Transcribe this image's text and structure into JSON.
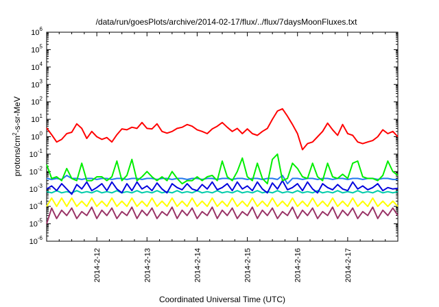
{
  "chart_data": {
    "type": "line",
    "title": "/data/run/goesPlots/archive/2014-02-17/flux/../flux/7daysMoonFluxes.txt",
    "xlabel": "Coordinated Universal Time (UTC)",
    "ylabel": {
      "base": "protons/cm",
      "sup": "2",
      "rest": "-s-sr-MeV"
    },
    "xlim": [
      0,
      7
    ],
    "ylim_log10": [
      -6,
      6
    ],
    "yscale": "log",
    "grid": false,
    "x_ticks": [
      {
        "x": 1,
        "label": "2014-2-12"
      },
      {
        "x": 2,
        "label": "2014-2-13"
      },
      {
        "x": 3,
        "label": "2014-2-14"
      },
      {
        "x": 4,
        "label": "2014-2-15"
      },
      {
        "x": 5,
        "label": "2014-2-16"
      },
      {
        "x": 6,
        "label": "2014-2-17"
      }
    ],
    "y_ticks": [
      {
        "exp": 6,
        "label": "10",
        "sup": "6"
      },
      {
        "exp": 5,
        "label": "10",
        "sup": "5"
      },
      {
        "exp": 4,
        "label": "10",
        "sup": "4"
      },
      {
        "exp": 3,
        "label": "10",
        "sup": "3"
      },
      {
        "exp": 2,
        "label": "10",
        "sup": "2"
      },
      {
        "exp": 1,
        "label": "10",
        "sup": "1"
      },
      {
        "exp": 0,
        "label": "10",
        "sup": "0"
      },
      {
        "exp": -1,
        "label": "10",
        "sup": "-1"
      },
      {
        "exp": -2,
        "label": "10",
        "sup": "-2"
      },
      {
        "exp": -3,
        "label": "10",
        "sup": "-3"
      },
      {
        "exp": -4,
        "label": "10",
        "sup": "-4"
      },
      {
        "exp": -5,
        "label": "10",
        "sup": "-5"
      },
      {
        "exp": -6,
        "label": "10",
        "sup": "-6"
      }
    ],
    "series": [
      {
        "color": "#ff0000",
        "x": [
          0,
          0.1,
          0.2,
          0.3,
          0.4,
          0.5,
          0.6,
          0.7,
          0.8,
          0.9,
          1.0,
          1.1,
          1.2,
          1.3,
          1.4,
          1.5,
          1.6,
          1.7,
          1.8,
          1.9,
          2.0,
          2.1,
          2.2,
          2.3,
          2.4,
          2.5,
          2.6,
          2.7,
          2.8,
          2.9,
          3.0,
          3.1,
          3.2,
          3.3,
          3.4,
          3.5,
          3.6,
          3.7,
          3.8,
          3.9,
          4.0,
          4.1,
          4.2,
          4.3,
          4.4,
          4.5,
          4.6,
          4.7,
          4.8,
          4.9,
          5.0,
          5.1,
          5.2,
          5.3,
          5.4,
          5.5,
          5.6,
          5.7,
          5.8,
          5.9,
          6.0,
          6.1,
          6.2,
          6.3,
          6.4,
          6.5,
          6.6,
          6.7,
          6.8,
          6.9,
          7.0
        ],
        "y": [
          3.2,
          1.3,
          0.5,
          0.7,
          1.5,
          1.8,
          5.5,
          3.0,
          0.8,
          2.0,
          1.0,
          0.7,
          0.9,
          0.5,
          1.3,
          2.8,
          2.5,
          3.5,
          3.0,
          6.5,
          3.0,
          2.8,
          5.5,
          2.0,
          1.6,
          2.0,
          3.0,
          3.5,
          5.0,
          4.0,
          2.5,
          2.0,
          1.5,
          2.8,
          4.0,
          6.5,
          3.5,
          2.0,
          3.0,
          1.5,
          2.8,
          1.5,
          1.2,
          2.0,
          3.0,
          10.0,
          30.0,
          40.0,
          15.0,
          5.0,
          1.5,
          0.18,
          0.4,
          0.5,
          1.0,
          2.0,
          6.0,
          2.5,
          1.2,
          5.0,
          1.5,
          1.2,
          0.5,
          0.4,
          0.5,
          0.6,
          1.0,
          2.5,
          1.5,
          2.0,
          1.0
        ]
      },
      {
        "color": "#00ee00",
        "x": [
          0,
          0.1,
          0.2,
          0.3,
          0.4,
          0.5,
          0.6,
          0.7,
          0.8,
          0.9,
          1.0,
          1.1,
          1.2,
          1.3,
          1.4,
          1.5,
          1.6,
          1.7,
          1.8,
          1.9,
          2.0,
          2.1,
          2.2,
          2.3,
          2.4,
          2.5,
          2.6,
          2.7,
          2.8,
          2.9,
          3.0,
          3.1,
          3.2,
          3.3,
          3.4,
          3.5,
          3.6,
          3.7,
          3.8,
          3.9,
          4.0,
          4.1,
          4.2,
          4.3,
          4.4,
          4.5,
          4.6,
          4.7,
          4.8,
          4.9,
          5.0,
          5.1,
          5.2,
          5.3,
          5.4,
          5.5,
          5.6,
          5.7,
          5.8,
          5.9,
          6.0,
          6.1,
          6.2,
          6.3,
          6.4,
          6.5,
          6.6,
          6.7,
          6.8,
          6.9,
          7.0
        ],
        "y": [
          0.025,
          0.004,
          0.005,
          0.003,
          0.015,
          0.004,
          0.003,
          0.03,
          0.003,
          0.003,
          0.005,
          0.005,
          0.003,
          0.005,
          0.04,
          0.003,
          0.006,
          0.05,
          0.003,
          0.005,
          0.01,
          0.005,
          0.003,
          0.005,
          0.003,
          0.01,
          0.004,
          0.002,
          0.003,
          0.003,
          0.005,
          0.003,
          0.005,
          0.006,
          0.003,
          0.04,
          0.005,
          0.003,
          0.01,
          0.06,
          0.005,
          0.003,
          0.03,
          0.004,
          0.002,
          0.05,
          0.1,
          0.003,
          0.004,
          0.03,
          0.015,
          0.005,
          0.004,
          0.03,
          0.005,
          0.003,
          0.03,
          0.005,
          0.004,
          0.007,
          0.004,
          0.03,
          0.04,
          0.005,
          0.004,
          0.004,
          0.003,
          0.006,
          0.04,
          0.01,
          0.006
        ]
      },
      {
        "color": "#0000dd",
        "x": [
          0,
          0.1,
          0.2,
          0.3,
          0.4,
          0.5,
          0.6,
          0.7,
          0.8,
          0.9,
          1.0,
          1.1,
          1.2,
          1.3,
          1.4,
          1.5,
          1.6,
          1.7,
          1.8,
          1.9,
          2.0,
          2.1,
          2.2,
          2.3,
          2.4,
          2.5,
          2.6,
          2.7,
          2.8,
          2.9,
          3.0,
          3.1,
          3.2,
          3.3,
          3.4,
          3.5,
          3.6,
          3.7,
          3.8,
          3.9,
          4.0,
          4.1,
          4.2,
          4.3,
          4.4,
          4.5,
          4.6,
          4.7,
          4.8,
          4.9,
          5.0,
          5.1,
          5.2,
          5.3,
          5.4,
          5.5,
          5.6,
          5.7,
          5.8,
          5.9,
          6.0,
          6.1,
          6.2,
          6.3,
          6.4,
          6.5,
          6.6,
          6.7,
          6.8,
          6.9,
          7.0
        ],
        "y": [
          0.001,
          0.0015,
          0.0008,
          0.002,
          0.001,
          0.0005,
          0.0018,
          0.001,
          0.0025,
          0.0008,
          0.0012,
          0.002,
          0.0008,
          0.0025,
          0.001,
          0.0006,
          0.002,
          0.0008,
          0.0025,
          0.001,
          0.0015,
          0.0008,
          0.0022,
          0.001,
          0.0006,
          0.002,
          0.0012,
          0.0009,
          0.002,
          0.001,
          0.0008,
          0.0018,
          0.001,
          0.0025,
          0.0009,
          0.0012,
          0.002,
          0.0008,
          0.0025,
          0.001,
          0.0015,
          0.0008,
          0.0025,
          0.001,
          0.0006,
          0.0022,
          0.001,
          0.003,
          0.0009,
          0.0012,
          0.002,
          0.0008,
          0.0025,
          0.001,
          0.0006,
          0.002,
          0.0012,
          0.0009,
          0.0018,
          0.001,
          0.0008,
          0.0025,
          0.001,
          0.0015,
          0.0009,
          0.0012,
          0.002,
          0.0008,
          0.0012,
          0.001,
          0.0011
        ]
      },
      {
        "color": "#2277ee",
        "x": [
          0,
          0.1,
          0.2,
          0.3,
          0.4,
          0.5,
          0.6,
          0.7,
          0.8,
          0.9,
          1.0,
          1.1,
          1.2,
          1.3,
          1.4,
          1.5,
          1.6,
          1.7,
          1.8,
          1.9,
          2.0,
          2.1,
          2.2,
          2.3,
          2.4,
          2.5,
          2.6,
          2.7,
          2.8,
          2.9,
          3.0,
          3.1,
          3.2,
          3.3,
          3.4,
          3.5,
          3.6,
          3.7,
          3.8,
          3.9,
          4.0,
          4.1,
          4.2,
          4.3,
          4.4,
          4.5,
          4.6,
          4.7,
          4.8,
          4.9,
          5.0,
          5.1,
          5.2,
          5.3,
          5.4,
          5.5,
          5.6,
          5.7,
          5.8,
          5.9,
          6.0,
          6.1,
          6.2,
          6.3,
          6.4,
          6.5,
          6.6,
          6.7,
          6.8,
          6.9,
          7.0
        ],
        "y": [
          0.004,
          0.0035,
          0.004,
          0.0035,
          0.006,
          0.004,
          0.004,
          0.0035,
          0.004,
          0.004,
          0.0035,
          0.004,
          0.004,
          0.0035,
          0.004,
          0.004,
          0.0035,
          0.004,
          0.004,
          0.0035,
          0.004,
          0.004,
          0.0035,
          0.004,
          0.004,
          0.0035,
          0.004,
          0.004,
          0.0035,
          0.004,
          0.004,
          0.0035,
          0.004,
          0.004,
          0.0035,
          0.004,
          0.004,
          0.0035,
          0.004,
          0.004,
          0.0035,
          0.004,
          0.004,
          0.0035,
          0.004,
          0.004,
          0.0035,
          0.006,
          0.002,
          0.004,
          0.004,
          0.0035,
          0.004,
          0.004,
          0.0035,
          0.004,
          0.004,
          0.0035,
          0.004,
          0.004,
          0.0035,
          0.004,
          0.004,
          0.0035,
          0.004,
          0.004,
          0.0035,
          0.004,
          0.004,
          0.0035,
          0.0035
        ]
      },
      {
        "color": "#00ccaa",
        "x": [
          0,
          0.1,
          0.2,
          0.3,
          0.4,
          0.5,
          0.6,
          0.7,
          0.8,
          0.9,
          1.0,
          1.1,
          1.2,
          1.3,
          1.4,
          1.5,
          1.6,
          1.7,
          1.8,
          1.9,
          2.0,
          2.1,
          2.2,
          2.3,
          2.4,
          2.5,
          2.6,
          2.7,
          2.8,
          2.9,
          3.0,
          3.1,
          3.2,
          3.3,
          3.4,
          3.5,
          3.6,
          3.7,
          3.8,
          3.9,
          4.0,
          4.1,
          4.2,
          4.3,
          4.4,
          4.5,
          4.6,
          4.7,
          4.8,
          4.9,
          5.0,
          5.1,
          5.2,
          5.3,
          5.4,
          5.5,
          5.6,
          5.7,
          5.8,
          5.9,
          6.0,
          6.1,
          6.2,
          6.3,
          6.4,
          6.5,
          6.6,
          6.7,
          6.8,
          6.9,
          7.0
        ],
        "y": [
          0.0007,
          0.0006,
          0.0008,
          0.0006,
          0.0007,
          0.0006,
          0.0008,
          0.0006,
          0.0007,
          0.0006,
          0.0008,
          0.0006,
          0.0007,
          0.0006,
          0.0008,
          0.0006,
          0.0007,
          0.0006,
          0.0008,
          0.0006,
          0.0007,
          0.0006,
          0.0008,
          0.0006,
          0.0007,
          0.0006,
          0.0008,
          0.0006,
          0.0007,
          0.0006,
          0.0008,
          0.0006,
          0.0007,
          0.0006,
          0.0008,
          0.0006,
          0.0007,
          0.0006,
          0.0008,
          0.0006,
          0.0007,
          0.0006,
          0.0008,
          0.0006,
          0.0007,
          0.0006,
          0.0008,
          0.0006,
          0.0007,
          0.0006,
          0.0008,
          0.0006,
          0.0007,
          0.0006,
          0.0008,
          0.0006,
          0.0007,
          0.0006,
          0.0008,
          0.0006,
          0.0007,
          0.0006,
          0.0008,
          0.0006,
          0.0007,
          0.0006,
          0.0008,
          0.0006,
          0.0007,
          0.0006,
          0.0007
        ]
      },
      {
        "color": "#ffff00",
        "x": [
          0,
          0.1,
          0.2,
          0.3,
          0.4,
          0.5,
          0.6,
          0.7,
          0.8,
          0.9,
          1.0,
          1.1,
          1.2,
          1.3,
          1.4,
          1.5,
          1.6,
          1.7,
          1.8,
          1.9,
          2.0,
          2.1,
          2.2,
          2.3,
          2.4,
          2.5,
          2.6,
          2.7,
          2.8,
          2.9,
          3.0,
          3.1,
          3.2,
          3.3,
          3.4,
          3.5,
          3.6,
          3.7,
          3.8,
          3.9,
          4.0,
          4.1,
          4.2,
          4.3,
          4.4,
          4.5,
          4.6,
          4.7,
          4.8,
          4.9,
          5.0,
          5.1,
          5.2,
          5.3,
          5.4,
          5.5,
          5.6,
          5.7,
          5.8,
          5.9,
          6.0,
          6.1,
          6.2,
          6.3,
          6.4,
          6.5,
          6.6,
          6.7,
          6.8,
          6.9,
          7.0
        ],
        "y": [
          0.0001,
          0.0003,
          0.0001,
          0.0003,
          0.0001,
          0.0003,
          0.0001,
          0.0002,
          0.0001,
          0.0003,
          0.0001,
          0.0002,
          0.0001,
          0.0003,
          0.0001,
          0.0002,
          0.0001,
          0.0003,
          0.0001,
          0.0002,
          0.0001,
          0.0003,
          0.0001,
          0.0002,
          0.0001,
          0.0003,
          0.0001,
          0.0002,
          0.0001,
          0.0003,
          0.0001,
          0.0002,
          0.0001,
          0.0003,
          0.0001,
          0.0002,
          0.0001,
          0.0003,
          0.0001,
          0.0002,
          0.0001,
          0.0003,
          0.0001,
          0.0002,
          0.0001,
          0.0003,
          0.0001,
          0.0002,
          0.0001,
          0.0003,
          0.0001,
          0.0002,
          0.0001,
          0.0003,
          0.0001,
          0.0002,
          0.0001,
          0.0003,
          0.0001,
          0.0002,
          0.0001,
          0.0003,
          0.0001,
          0.0002,
          0.0001,
          0.0003,
          0.0001,
          0.0002,
          0.0001,
          0.0002,
          0.0001
        ]
      },
      {
        "color": "#993366",
        "x": [
          0,
          0.1,
          0.2,
          0.3,
          0.4,
          0.5,
          0.6,
          0.7,
          0.8,
          0.9,
          1.0,
          1.1,
          1.2,
          1.3,
          1.4,
          1.5,
          1.6,
          1.7,
          1.8,
          1.9,
          2.0,
          2.1,
          2.2,
          2.3,
          2.4,
          2.5,
          2.6,
          2.7,
          2.8,
          2.9,
          3.0,
          3.1,
          3.2,
          3.3,
          3.4,
          3.5,
          3.6,
          3.7,
          3.8,
          3.9,
          4.0,
          4.1,
          4.2,
          4.3,
          4.4,
          4.5,
          4.6,
          4.7,
          4.8,
          4.9,
          5.0,
          5.1,
          5.2,
          5.3,
          5.4,
          5.5,
          5.6,
          5.7,
          5.8,
          5.9,
          6.0,
          6.1,
          6.2,
          6.3,
          6.4,
          6.5,
          6.6,
          6.7,
          6.8,
          6.9,
          7.0
        ],
        "y": [
          1e-05,
          8e-05,
          2e-05,
          6e-05,
          3e-05,
          8e-05,
          2e-05,
          5e-05,
          3e-05,
          9e-05,
          2e-05,
          6e-05,
          3e-05,
          8e-05,
          2e-05,
          5e-05,
          3e-05,
          9e-05,
          2e-05,
          6e-05,
          3e-05,
          8e-05,
          2e-05,
          5e-05,
          3e-05,
          9e-05,
          2e-05,
          6e-05,
          3e-05,
          8e-05,
          2e-05,
          5e-05,
          3e-05,
          9e-05,
          2e-05,
          6e-05,
          3e-05,
          8e-05,
          2e-05,
          5e-05,
          3e-05,
          9e-05,
          2e-05,
          6e-05,
          3e-05,
          8e-05,
          2e-05,
          5e-05,
          3e-05,
          9e-05,
          2e-05,
          6e-05,
          3e-05,
          8e-05,
          2e-05,
          5e-05,
          3e-05,
          9e-05,
          2e-05,
          6e-05,
          3e-05,
          8e-05,
          2e-05,
          5e-05,
          3e-05,
          9e-05,
          2e-05,
          6e-05,
          3e-05,
          8e-05,
          3e-05
        ]
      }
    ]
  }
}
